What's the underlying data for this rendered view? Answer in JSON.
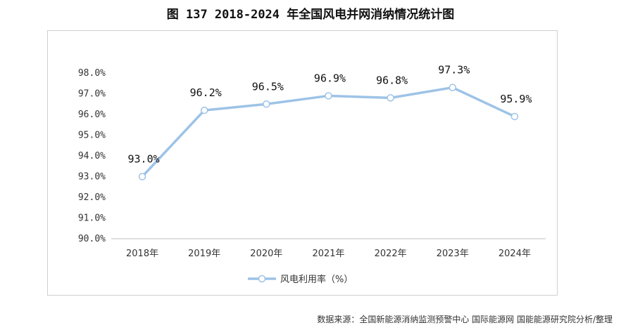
{
  "title": "图 137 2018-2024 年全国风电并网消纳情况统计图",
  "source": "数据来源：全国新能源消纳监测预警中心 国际能源网 国能能源研究院分析/整理",
  "chart_data": {
    "type": "line",
    "categories": [
      "2018年",
      "2019年",
      "2020年",
      "2021年",
      "2022年",
      "2023年",
      "2024年"
    ],
    "series": [
      {
        "name": "风电利用率（%）",
        "values": [
          93.0,
          96.2,
          96.5,
          96.9,
          96.8,
          97.3,
          95.9
        ],
        "labels": [
          "93.0%",
          "96.2%",
          "96.5%",
          "96.9%",
          "96.8%",
          "97.3%",
          "95.9%"
        ]
      }
    ],
    "ylim": [
      90.0,
      98.0
    ],
    "yticks": [
      "90.0%",
      "91.0%",
      "92.0%",
      "93.0%",
      "94.0%",
      "95.0%",
      "96.0%",
      "97.0%",
      "98.0%"
    ],
    "grid": false,
    "legend_position": "bottom",
    "line_color": "#9dc3e6",
    "marker_fill": "#ffffff"
  }
}
